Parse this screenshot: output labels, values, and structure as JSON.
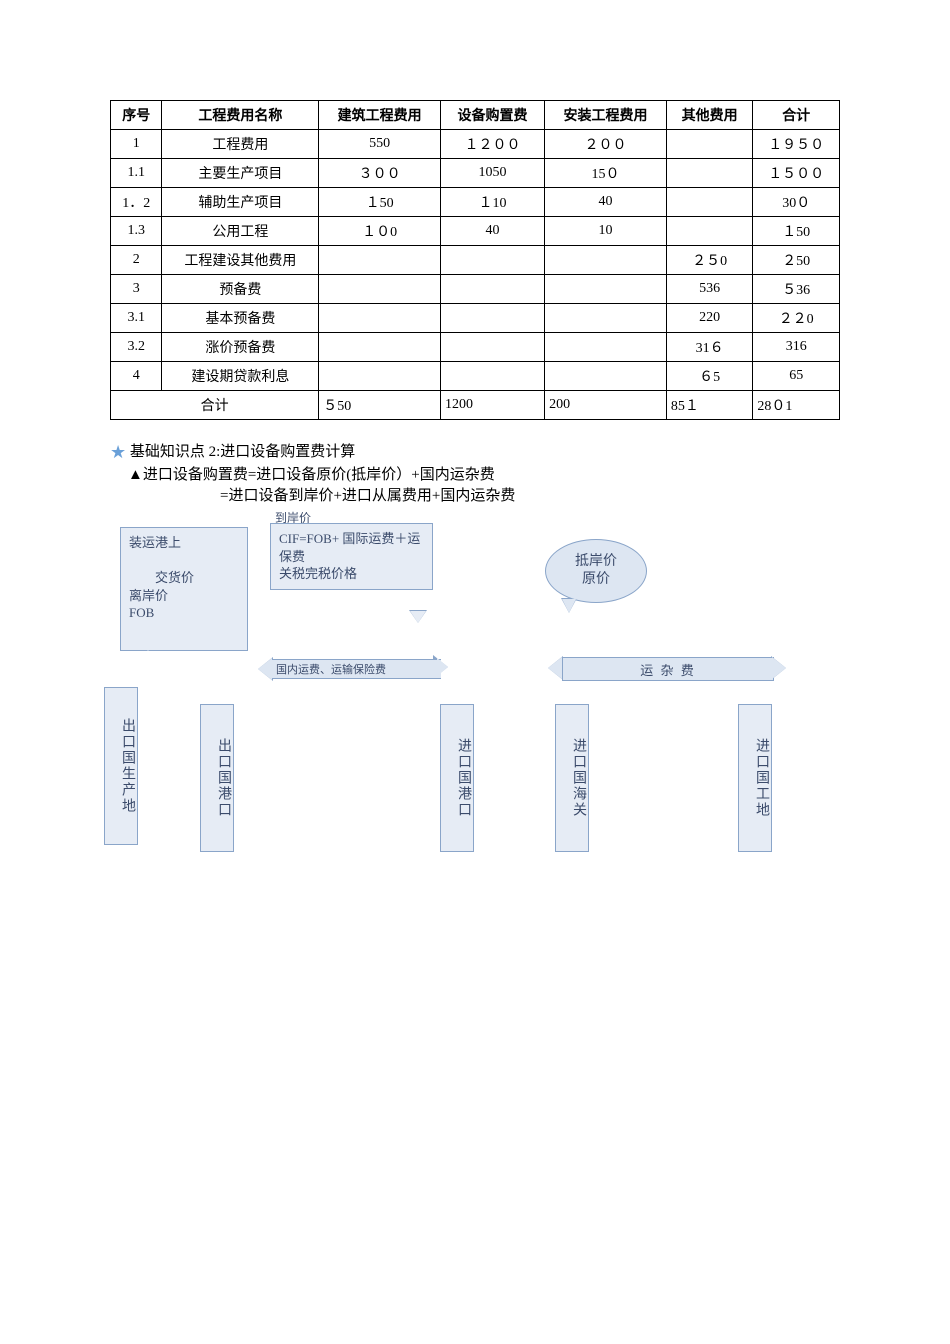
{
  "table": {
    "headers": [
      "序号",
      "工程费用名称",
      "建筑工程费用",
      "设备购置费",
      "安装工程费用",
      "其他费用",
      "合计"
    ],
    "rows": [
      [
        "1",
        "工程费用",
        "550",
        "１２００",
        "２００",
        "",
        "１９５０"
      ],
      [
        "1.1",
        "主要生产项目",
        "３００",
        "1050",
        "15０",
        "",
        "１５００"
      ],
      [
        "1．2",
        "辅助生产项目",
        "１50",
        "１10",
        "40",
        "",
        "30０"
      ],
      [
        "1.3",
        "公用工程",
        "１０0",
        "40",
        "10",
        "",
        "１50"
      ],
      [
        "2",
        "工程建设其他费用",
        "",
        "",
        "",
        "２５0",
        "２50"
      ],
      [
        "3",
        "预备费",
        "",
        "",
        "",
        "536",
        "５36"
      ],
      [
        "3.1",
        "基本预备费",
        "",
        "",
        "",
        "220",
        "２２0"
      ],
      [
        "3.2",
        "涨价预备费",
        "",
        "",
        "",
        "31６",
        "316"
      ],
      [
        "4",
        "建设期贷款利息",
        "",
        "",
        "",
        "６5",
        "65"
      ]
    ],
    "footer": [
      "合计",
      "５50",
      "1200",
      "200",
      "85１",
      "28０1"
    ]
  },
  "section": {
    "title": "基础知识点 2:进口设备购置费计算",
    "line1": "▲进口设备购置费=进口设备原价(抵岸价）+国内运杂费",
    "line2": "=进口设备到岸价+进口从属费用+国内运杂费"
  },
  "diagram": {
    "cif_label": "到岸价",
    "callout_left": "装运港上\n\n　　交货价\n离岸价\nFOB",
    "callout_mid": "CIF=FOB+ 国际运费＋运保费\n关税完税价格",
    "bubble": "抵岸价\n原价",
    "bar_mid_clip": "国内运费、运输保险费",
    "bar_right": "运 杂 费",
    "boxes": [
      "出口国生产地",
      "出口国港口",
      "进口国港口",
      "进口国海关",
      "进口国工地"
    ]
  }
}
